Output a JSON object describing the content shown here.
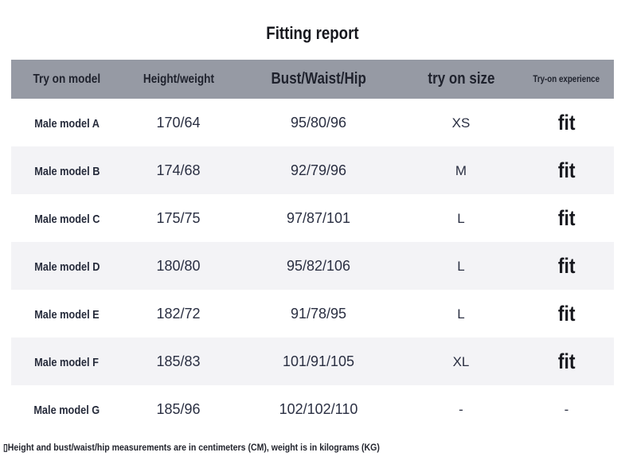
{
  "title": "Fitting report",
  "table": {
    "columns": [
      {
        "label": "Try on model"
      },
      {
        "label": "Height/weight"
      },
      {
        "label": "Bust/Waist/Hip"
      },
      {
        "label": "try on size"
      },
      {
        "label": "Try-on experience"
      }
    ],
    "rows": [
      {
        "model": "Male model A",
        "height_weight": "170/64",
        "bust_waist_hip": "95/80/96",
        "size": "XS",
        "experience": "fit"
      },
      {
        "model": "Male model B",
        "height_weight": "174/68",
        "bust_waist_hip": "92/79/96",
        "size": "M",
        "experience": "fit"
      },
      {
        "model": "Male model C",
        "height_weight": "175/75",
        "bust_waist_hip": "97/87/101",
        "size": "L",
        "experience": "fit"
      },
      {
        "model": "Male model D",
        "height_weight": "180/80",
        "bust_waist_hip": "95/82/106",
        "size": "L",
        "experience": "fit"
      },
      {
        "model": "Male model E",
        "height_weight": "182/72",
        "bust_waist_hip": "91/78/95",
        "size": "L",
        "experience": "fit"
      },
      {
        "model": "Male model F",
        "height_weight": "185/83",
        "bust_waist_hip": "101/91/105",
        "size": "XL",
        "experience": "fit"
      },
      {
        "model": "Male model G",
        "height_weight": "185/96",
        "bust_waist_hip": "102/102/110",
        "size": "-",
        "experience": "-"
      }
    ]
  },
  "note": "▯Height and bust/waist/hip measurements are in centimeters (CM), weight is in kilograms (KG)",
  "colors": {
    "header_bg": "#969aa4",
    "row_alt_bg": "#f3f3f6",
    "text": "#2a2f42",
    "title_text": "#17181e"
  }
}
